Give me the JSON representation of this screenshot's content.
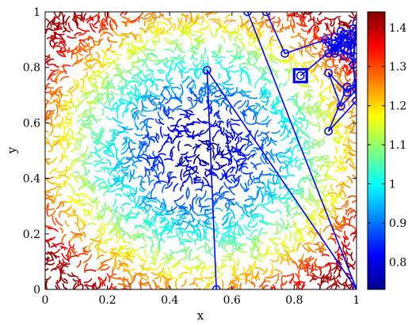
{
  "chart_data": {
    "type": "scatter",
    "xlabel": "x",
    "ylabel": "y",
    "xlim": [
      0,
      1
    ],
    "ylim": [
      0,
      1
    ],
    "x_ticks": [
      "0",
      "0.2",
      "0.4",
      "0.6",
      "0.8",
      "1"
    ],
    "y_ticks": [
      "0",
      "0.2",
      "0.4",
      "0.6",
      "0.8",
      "1"
    ],
    "colorbar": {
      "range": [
        0.73,
        1.44
      ],
      "ticks": [
        "0.8",
        "0.9",
        "1",
        "1.1",
        "1.2",
        "1.3",
        "1.4"
      ],
      "colormap": "jet",
      "placement": "right"
    },
    "background": {
      "type": "noisy-contour-field",
      "minimum_at": [
        0.5,
        0.5
      ],
      "min_value": 0.75,
      "max_value": 1.42
    },
    "path": {
      "color": "#0000ff",
      "marker": "circle",
      "x": [
        0.55,
        0.52,
        1.0,
        0.65,
        0.71,
        0.77,
        0.9,
        0.93,
        0.96,
        0.92,
        0.98,
        0.95,
        0.93,
        0.97,
        0.91,
        0.99,
        1.0,
        0.99,
        1.0,
        0.91,
        0.97,
        1.0,
        0.97,
        0.91,
        0.95,
        1.0,
        0.98,
        0.93,
        0.96,
        0.95,
        1.0,
        0.97,
        0.99,
        0.96,
        0.94,
        0.91,
        0.99,
        0.93,
        0.96,
        0.82
      ],
      "y": [
        0.0,
        0.79,
        0.0,
        1.0,
        1.0,
        0.85,
        0.9,
        0.86,
        0.9,
        0.87,
        0.88,
        0.93,
        0.85,
        0.92,
        0.89,
        0.84,
        0.96,
        0.81,
        0.68,
        0.57,
        0.73,
        0.74,
        0.71,
        0.78,
        0.66,
        0.72,
        0.88,
        0.91,
        0.84,
        0.87,
        0.93,
        0.86,
        0.89,
        0.92,
        0.88,
        0.85,
        0.94,
        0.87,
        0.9,
        0.77
      ]
    },
    "final_point": {
      "x": 0.82,
      "y": 0.77,
      "marker": "square"
    }
  }
}
